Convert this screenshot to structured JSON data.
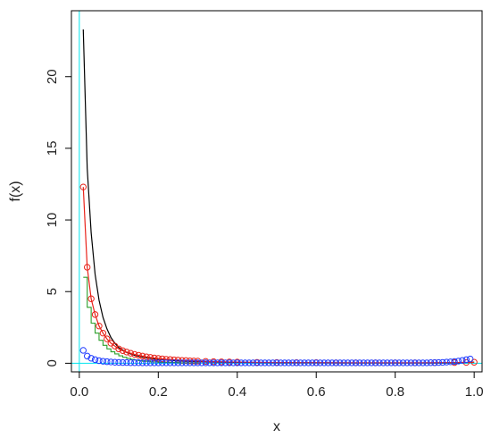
{
  "chart_data": {
    "type": "line",
    "xlabel": "x",
    "ylabel": "f(x)",
    "xlim": [
      -0.02,
      1.02
    ],
    "ylim": [
      -0.6,
      24.6
    ],
    "x_ticks": [
      {
        "value": 0.0,
        "label": "0.0"
      },
      {
        "value": 0.2,
        "label": "0.2"
      },
      {
        "value": 0.4,
        "label": "0.4"
      },
      {
        "value": 0.6,
        "label": "0.6"
      },
      {
        "value": 0.8,
        "label": "0.8"
      },
      {
        "value": 1.0,
        "label": "1.0"
      }
    ],
    "y_ticks": [
      {
        "value": 0,
        "label": "0"
      },
      {
        "value": 5,
        "label": "5"
      },
      {
        "value": 10,
        "label": "10"
      },
      {
        "value": 15,
        "label": "15"
      },
      {
        "value": 20,
        "label": "20"
      }
    ],
    "reference_lines": {
      "x": 0,
      "y": 0,
      "color": "#00e5ee"
    },
    "grid": false,
    "series": [
      {
        "color": "#000000",
        "style": "line",
        "x": [
          0.01,
          0.02,
          0.03,
          0.04,
          0.05,
          0.06,
          0.07,
          0.08,
          0.09,
          0.1,
          0.12,
          0.14,
          0.16,
          0.18,
          0.2,
          0.25,
          0.3,
          0.35,
          0.4,
          0.5,
          0.6,
          0.7,
          0.8,
          0.9,
          0.95,
          0.98,
          1.0
        ],
        "y": [
          23.3,
          13.6,
          9.1,
          6.2,
          4.4,
          3.2,
          2.4,
          1.8,
          1.4,
          1.1,
          0.75,
          0.55,
          0.42,
          0.33,
          0.26,
          0.16,
          0.11,
          0.08,
          0.06,
          0.04,
          0.03,
          0.02,
          0.02,
          0.02,
          0.03,
          0.05,
          0.08
        ]
      },
      {
        "color": "#e8231a",
        "style": "line-points",
        "x": [
          0.01,
          0.02,
          0.03,
          0.04,
          0.05,
          0.06,
          0.07,
          0.08,
          0.09,
          0.1,
          0.11,
          0.12,
          0.13,
          0.14,
          0.15,
          0.16,
          0.17,
          0.18,
          0.19,
          0.2,
          0.21,
          0.22,
          0.23,
          0.24,
          0.25,
          0.26,
          0.27,
          0.28,
          0.29,
          0.3,
          0.32,
          0.34,
          0.36,
          0.38,
          0.4,
          0.45,
          0.5,
          0.55,
          0.6,
          0.65,
          0.7,
          0.75,
          0.8,
          0.85,
          0.9,
          0.95,
          0.98,
          1.0
        ],
        "y": [
          12.3,
          6.7,
          4.5,
          3.4,
          2.6,
          2.1,
          1.7,
          1.4,
          1.2,
          1.0,
          0.88,
          0.78,
          0.7,
          0.62,
          0.56,
          0.5,
          0.45,
          0.41,
          0.37,
          0.34,
          0.31,
          0.28,
          0.26,
          0.24,
          0.22,
          0.2,
          0.19,
          0.17,
          0.16,
          0.15,
          0.13,
          0.11,
          0.1,
          0.09,
          0.08,
          0.06,
          0.05,
          0.04,
          0.04,
          0.03,
          0.03,
          0.03,
          0.03,
          0.03,
          0.04,
          0.05,
          0.06,
          0.07
        ]
      },
      {
        "color": "#2ca02c",
        "style": "step",
        "x": [
          0.01,
          0.02,
          0.03,
          0.04,
          0.05,
          0.06,
          0.07,
          0.08,
          0.09,
          0.1,
          0.11,
          0.12,
          0.13,
          0.14,
          0.15,
          0.16,
          0.18,
          0.2,
          0.25,
          0.3
        ],
        "y": [
          6.0,
          3.9,
          2.8,
          2.1,
          1.6,
          1.25,
          1.0,
          0.8,
          0.65,
          0.52,
          0.42,
          0.34,
          0.27,
          0.22,
          0.18,
          0.14,
          0.09,
          0.06,
          0.03,
          0.01
        ]
      },
      {
        "color": "#1f3bff",
        "style": "points",
        "x": [
          0.01,
          0.02,
          0.03,
          0.04,
          0.05,
          0.06,
          0.07,
          0.08,
          0.09,
          0.1,
          0.11,
          0.12,
          0.13,
          0.14,
          0.15,
          0.16,
          0.17,
          0.18,
          0.19,
          0.2,
          0.21,
          0.22,
          0.23,
          0.24,
          0.25,
          0.26,
          0.27,
          0.28,
          0.29,
          0.3,
          0.31,
          0.32,
          0.33,
          0.34,
          0.35,
          0.36,
          0.37,
          0.38,
          0.39,
          0.4,
          0.41,
          0.42,
          0.43,
          0.44,
          0.45,
          0.46,
          0.47,
          0.48,
          0.49,
          0.5,
          0.51,
          0.52,
          0.53,
          0.54,
          0.55,
          0.56,
          0.57,
          0.58,
          0.59,
          0.6,
          0.61,
          0.62,
          0.63,
          0.64,
          0.65,
          0.66,
          0.67,
          0.68,
          0.69,
          0.7,
          0.71,
          0.72,
          0.73,
          0.74,
          0.75,
          0.76,
          0.77,
          0.78,
          0.79,
          0.8,
          0.81,
          0.82,
          0.83,
          0.84,
          0.85,
          0.86,
          0.87,
          0.88,
          0.89,
          0.9,
          0.91,
          0.92,
          0.93,
          0.94,
          0.95,
          0.96,
          0.97,
          0.98,
          0.99
        ],
        "y": [
          0.9,
          0.5,
          0.35,
          0.25,
          0.18,
          0.14,
          0.11,
          0.09,
          0.07,
          0.06,
          0.05,
          0.05,
          0.04,
          0.04,
          0.04,
          0.03,
          0.03,
          0.03,
          0.03,
          0.03,
          0.03,
          0.03,
          0.03,
          0.03,
          0.03,
          0.03,
          0.03,
          0.03,
          0.03,
          0.03,
          0.03,
          0.03,
          0.03,
          0.03,
          0.03,
          0.03,
          0.03,
          0.03,
          0.03,
          0.03,
          0.03,
          0.03,
          0.03,
          0.03,
          0.03,
          0.03,
          0.03,
          0.03,
          0.03,
          0.03,
          0.03,
          0.03,
          0.03,
          0.03,
          0.03,
          0.03,
          0.03,
          0.03,
          0.03,
          0.03,
          0.03,
          0.03,
          0.03,
          0.03,
          0.03,
          0.03,
          0.03,
          0.03,
          0.03,
          0.03,
          0.03,
          0.03,
          0.03,
          0.03,
          0.03,
          0.03,
          0.03,
          0.03,
          0.03,
          0.03,
          0.03,
          0.03,
          0.03,
          0.03,
          0.03,
          0.03,
          0.03,
          0.03,
          0.04,
          0.04,
          0.05,
          0.06,
          0.08,
          0.1,
          0.12,
          0.15,
          0.2,
          0.25,
          0.3
        ]
      }
    ]
  }
}
